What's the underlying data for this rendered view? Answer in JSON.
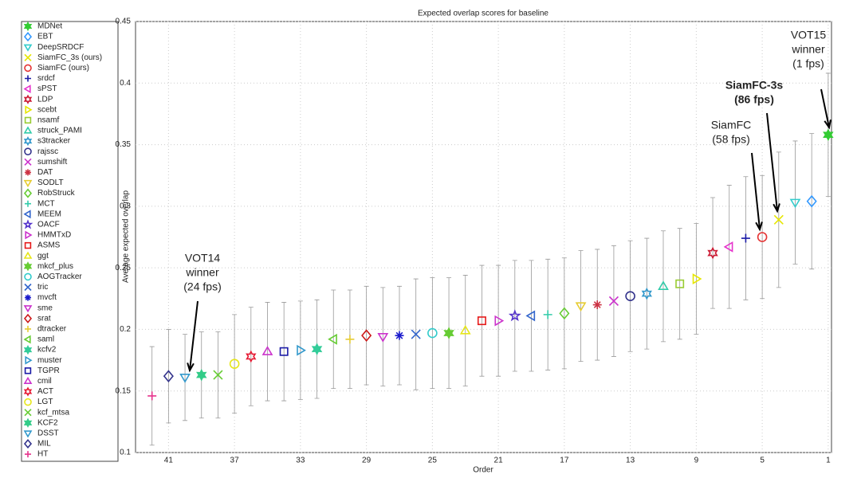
{
  "chart_data": {
    "type": "errorbar",
    "title": "Expected overlap scores for baseline",
    "xlabel": "Order",
    "ylabel": "Average expected overlap",
    "xlim": [
      43,
      0.8
    ],
    "ylim": [
      0.1,
      0.45
    ],
    "xticks": [
      41,
      37,
      33,
      29,
      25,
      21,
      17,
      13,
      9,
      5,
      1
    ],
    "yticks": [
      0.1,
      0.15,
      0.2,
      0.25,
      0.3,
      0.35,
      0.4,
      0.45
    ],
    "grid": true,
    "series": [
      {
        "name": "MDNet",
        "color": "#33cc33",
        "marker": "hexagram-filled",
        "x": [
          1
        ],
        "values": [
          0.358
        ],
        "errors": [
          0.05
        ]
      },
      {
        "name": "EBT",
        "color": "#3399ff",
        "marker": "diamond",
        "x": [
          2
        ],
        "values": [
          0.304
        ],
        "errors": [
          0.055
        ]
      },
      {
        "name": "DeepSRDCF",
        "color": "#33cccc",
        "marker": "triangle-down",
        "x": [
          3
        ],
        "values": [
          0.303
        ],
        "errors": [
          0.05
        ]
      },
      {
        "name": "SiamFC_3s (ours)",
        "color": "#e6e600",
        "marker": "x",
        "x": [
          4
        ],
        "values": [
          0.289
        ],
        "errors": [
          0.055
        ]
      },
      {
        "name": "SiamFC (ours)",
        "color": "#e53333",
        "marker": "circle",
        "x": [
          5
        ],
        "values": [
          0.275
        ],
        "errors": [
          0.05
        ]
      },
      {
        "name": "srdcf",
        "color": "#1a1aa6",
        "marker": "plus",
        "x": [
          6
        ],
        "values": [
          0.274
        ],
        "errors": [
          0.05
        ]
      },
      {
        "name": "sPST",
        "color": "#e633cc",
        "marker": "triangle-left",
        "x": [
          7
        ],
        "values": [
          0.267
        ],
        "errors": [
          0.05
        ]
      },
      {
        "name": "LDP",
        "color": "#cc1a33",
        "marker": "hexagram",
        "x": [
          8
        ],
        "values": [
          0.262
        ],
        "errors": [
          0.045
        ]
      },
      {
        "name": "scebt",
        "color": "#e6e600",
        "marker": "triangle-right",
        "x": [
          9
        ],
        "values": [
          0.241
        ],
        "errors": [
          0.045
        ]
      },
      {
        "name": "nsamf",
        "color": "#99cc33",
        "marker": "square",
        "x": [
          10
        ],
        "values": [
          0.237
        ],
        "errors": [
          0.045
        ]
      },
      {
        "name": "struck_PAMI",
        "color": "#33ccaa",
        "marker": "triangle-up",
        "x": [
          11
        ],
        "values": [
          0.235
        ],
        "errors": [
          0.045
        ]
      },
      {
        "name": "s3tracker",
        "color": "#3399cc",
        "marker": "hexagram",
        "x": [
          12
        ],
        "values": [
          0.229
        ],
        "errors": [
          0.045
        ]
      },
      {
        "name": "rajssc",
        "color": "#33338c",
        "marker": "circle",
        "x": [
          13
        ],
        "values": [
          0.227
        ],
        "errors": [
          0.045
        ]
      },
      {
        "name": "sumshift",
        "color": "#cc33cc",
        "marker": "x",
        "x": [
          14
        ],
        "values": [
          0.223
        ],
        "errors": [
          0.045
        ]
      },
      {
        "name": "DAT",
        "color": "#cc3344",
        "marker": "asterisk",
        "x": [
          15
        ],
        "values": [
          0.22
        ],
        "errors": [
          0.045
        ]
      },
      {
        "name": "SODLT",
        "color": "#e6cc33",
        "marker": "triangle-down",
        "x": [
          16
        ],
        "values": [
          0.219
        ],
        "errors": [
          0.045
        ]
      },
      {
        "name": "RobStruck",
        "color": "#66cc33",
        "marker": "diamond",
        "x": [
          17
        ],
        "values": [
          0.213
        ],
        "errors": [
          0.045
        ]
      },
      {
        "name": "MCT",
        "color": "#33ccaa",
        "marker": "plus",
        "x": [
          18
        ],
        "values": [
          0.212
        ],
        "errors": [
          0.045
        ]
      },
      {
        "name": "MEEM",
        "color": "#3366cc",
        "marker": "triangle-left",
        "x": [
          19
        ],
        "values": [
          0.211
        ],
        "errors": [
          0.045
        ]
      },
      {
        "name": "OACF",
        "color": "#5533cc",
        "marker": "pentagram",
        "x": [
          20
        ],
        "values": [
          0.211
        ],
        "errors": [
          0.045
        ]
      },
      {
        "name": "HMMTxD",
        "color": "#cc33cc",
        "marker": "triangle-right",
        "x": [
          21
        ],
        "values": [
          0.207
        ],
        "errors": [
          0.045
        ]
      },
      {
        "name": "ASMS",
        "color": "#e61a1a",
        "marker": "square",
        "x": [
          22
        ],
        "values": [
          0.207
        ],
        "errors": [
          0.045
        ]
      },
      {
        "name": "ggt",
        "color": "#e6e61a",
        "marker": "triangle-up",
        "x": [
          23
        ],
        "values": [
          0.199
        ],
        "errors": [
          0.045
        ]
      },
      {
        "name": "mkcf_plus",
        "color": "#66cc33",
        "marker": "hexagram-filled",
        "x": [
          24
        ],
        "values": [
          0.197
        ],
        "errors": [
          0.045
        ]
      },
      {
        "name": "AOGTracker",
        "color": "#33cccc",
        "marker": "circle",
        "x": [
          25
        ],
        "values": [
          0.197
        ],
        "errors": [
          0.045
        ]
      },
      {
        "name": "tric",
        "color": "#3366cc",
        "marker": "x",
        "x": [
          26
        ],
        "values": [
          0.196
        ],
        "errors": [
          0.045
        ]
      },
      {
        "name": "mvcft",
        "color": "#1a1acc",
        "marker": "asterisk",
        "x": [
          27
        ],
        "values": [
          0.195
        ],
        "errors": [
          0.04
        ]
      },
      {
        "name": "sme",
        "color": "#cc33cc",
        "marker": "triangle-down",
        "x": [
          28
        ],
        "values": [
          0.194
        ],
        "errors": [
          0.04
        ]
      },
      {
        "name": "srat",
        "color": "#cc1a1a",
        "marker": "diamond",
        "x": [
          29
        ],
        "values": [
          0.195
        ],
        "errors": [
          0.04
        ]
      },
      {
        "name": "dtracker",
        "color": "#e6cc33",
        "marker": "plus",
        "x": [
          30
        ],
        "values": [
          0.192
        ],
        "errors": [
          0.04
        ]
      },
      {
        "name": "saml",
        "color": "#66cc33",
        "marker": "triangle-left",
        "x": [
          31
        ],
        "values": [
          0.192
        ],
        "errors": [
          0.04
        ]
      },
      {
        "name": "kcfv2",
        "color": "#33cc99",
        "marker": "hexagram-filled",
        "x": [
          32
        ],
        "values": [
          0.184
        ],
        "errors": [
          0.04
        ]
      },
      {
        "name": "muster",
        "color": "#3399cc",
        "marker": "triangle-right",
        "x": [
          33
        ],
        "values": [
          0.183
        ],
        "errors": [
          0.04
        ]
      },
      {
        "name": "TGPR",
        "color": "#1a1aa6",
        "marker": "square",
        "x": [
          34
        ],
        "values": [
          0.182
        ],
        "errors": [
          0.04
        ]
      },
      {
        "name": "cmil",
        "color": "#cc33cc",
        "marker": "triangle-up",
        "x": [
          35
        ],
        "values": [
          0.182
        ],
        "errors": [
          0.04
        ]
      },
      {
        "name": "ACT",
        "color": "#e61a33",
        "marker": "hexagram",
        "x": [
          36
        ],
        "values": [
          0.178
        ],
        "errors": [
          0.04
        ]
      },
      {
        "name": "LGT",
        "color": "#e6e61a",
        "marker": "circle",
        "x": [
          37
        ],
        "values": [
          0.172
        ],
        "errors": [
          0.04
        ]
      },
      {
        "name": "kcf_mtsa",
        "color": "#66cc33",
        "marker": "x",
        "x": [
          38
        ],
        "values": [
          0.163
        ],
        "errors": [
          0.035
        ]
      },
      {
        "name": "KCF2",
        "color": "#33cc88",
        "marker": "hexagram-filled",
        "x": [
          39
        ],
        "values": [
          0.163
        ],
        "errors": [
          0.035
        ]
      },
      {
        "name": "DSST",
        "color": "#3399cc",
        "marker": "triangle-down",
        "x": [
          40
        ],
        "values": [
          0.161
        ],
        "errors": [
          0.035
        ]
      },
      {
        "name": "MIL",
        "color": "#33338c",
        "marker": "diamond",
        "x": [
          41
        ],
        "values": [
          0.162
        ],
        "errors": [
          0.038
        ]
      },
      {
        "name": "HT",
        "color": "#e6338c",
        "marker": "plus",
        "x": [
          42
        ],
        "values": [
          0.146
        ],
        "errors": [
          0.04
        ]
      }
    ],
    "annotations": [
      {
        "lines": [
          "VOT15",
          "winner",
          "(1 fps)"
        ],
        "bold": false
      },
      {
        "lines": [
          "SiamFC-3s",
          "(86 fps)"
        ],
        "bold": true
      },
      {
        "lines": [
          "SiamFC",
          "(58 fps)"
        ],
        "bold": false
      },
      {
        "lines": [
          "VOT14",
          "winner",
          "(24 fps)"
        ],
        "bold": false
      }
    ]
  }
}
